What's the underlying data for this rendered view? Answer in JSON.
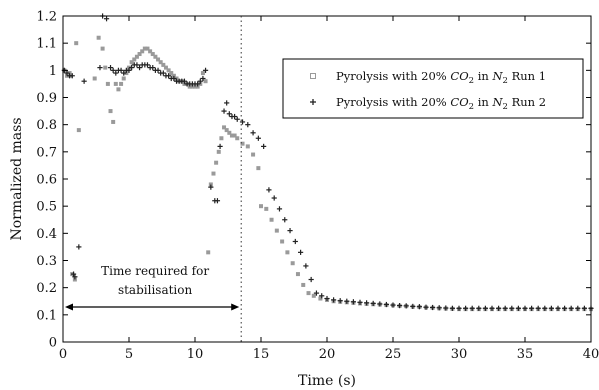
{
  "chart_data": {
    "type": "scatter",
    "xlabel": "Time (s)",
    "ylabel": "Normalized mass",
    "xlim": [
      0,
      40
    ],
    "ylim": [
      0,
      1.2
    ],
    "xticks": [
      "0",
      "5",
      "10",
      "15",
      "20",
      "25",
      "30",
      "35",
      "40"
    ],
    "yticks": [
      "0",
      "0.1",
      "0.2",
      "0.3",
      "0.4",
      "0.5",
      "0.6",
      "0.7",
      "0.8",
      "0.9",
      "1",
      "1.1",
      "1.2"
    ],
    "grid": false,
    "legend_position": "top-right",
    "stabilisation_time": 13.5,
    "annotation": [
      "Time required for",
      "stabilisation"
    ],
    "series": [
      {
        "name": "Pyrolysis with 20% CO2 in N2 Run 1",
        "legend_parts": [
          "Pyrolysis with 20% ",
          "CO",
          "2",
          " in ",
          "N",
          "2",
          " Run 1"
        ],
        "marker": "square",
        "color": "#9a9a9a",
        "points": [
          [
            0.1,
            1.0
          ],
          [
            0.3,
            0.98
          ],
          [
            0.5,
            0.99
          ],
          [
            0.6,
            0.98
          ],
          [
            0.7,
            0.25
          ],
          [
            0.9,
            0.23
          ],
          [
            1.0,
            1.1
          ],
          [
            1.2,
            0.78
          ],
          [
            2.4,
            0.97
          ],
          [
            2.7,
            1.12
          ],
          [
            3.0,
            1.08
          ],
          [
            3.2,
            1.01
          ],
          [
            3.4,
            0.95
          ],
          [
            3.6,
            0.85
          ],
          [
            3.8,
            0.81
          ],
          [
            4.0,
            0.95
          ],
          [
            4.2,
            0.93
          ],
          [
            4.4,
            0.95
          ],
          [
            4.6,
            0.97
          ],
          [
            4.8,
            0.99
          ],
          [
            5.0,
            1.01
          ],
          [
            5.2,
            1.03
          ],
          [
            5.4,
            1.04
          ],
          [
            5.6,
            1.05
          ],
          [
            5.8,
            1.06
          ],
          [
            6.0,
            1.07
          ],
          [
            6.2,
            1.08
          ],
          [
            6.4,
            1.08
          ],
          [
            6.6,
            1.07
          ],
          [
            6.8,
            1.06
          ],
          [
            7.0,
            1.05
          ],
          [
            7.2,
            1.04
          ],
          [
            7.4,
            1.03
          ],
          [
            7.6,
            1.02
          ],
          [
            7.8,
            1.01
          ],
          [
            8.0,
            1.0
          ],
          [
            8.2,
            0.99
          ],
          [
            8.4,
            0.98
          ],
          [
            8.6,
            0.97
          ],
          [
            8.8,
            0.96
          ],
          [
            9.0,
            0.96
          ],
          [
            9.2,
            0.95
          ],
          [
            9.4,
            0.95
          ],
          [
            9.6,
            0.94
          ],
          [
            9.8,
            0.94
          ],
          [
            10.0,
            0.94
          ],
          [
            10.2,
            0.94
          ],
          [
            10.4,
            0.95
          ],
          [
            10.6,
            0.99
          ],
          [
            10.8,
            0.96
          ],
          [
            11.0,
            0.33
          ],
          [
            11.2,
            0.58
          ],
          [
            11.4,
            0.62
          ],
          [
            11.6,
            0.66
          ],
          [
            11.8,
            0.7
          ],
          [
            12.0,
            0.75
          ],
          [
            12.2,
            0.79
          ],
          [
            12.4,
            0.78
          ],
          [
            12.6,
            0.77
          ],
          [
            12.8,
            0.76
          ],
          [
            13.0,
            0.76
          ],
          [
            13.2,
            0.75
          ],
          [
            13.6,
            0.73
          ],
          [
            14.0,
            0.72
          ],
          [
            14.4,
            0.69
          ],
          [
            14.8,
            0.64
          ],
          [
            15.0,
            0.5
          ],
          [
            15.4,
            0.49
          ],
          [
            15.8,
            0.45
          ],
          [
            16.2,
            0.41
          ],
          [
            16.6,
            0.37
          ],
          [
            17.0,
            0.33
          ],
          [
            17.4,
            0.29
          ],
          [
            17.8,
            0.25
          ],
          [
            18.2,
            0.21
          ],
          [
            18.6,
            0.18
          ],
          [
            19.0,
            0.17
          ],
          [
            19.5,
            0.16
          ],
          [
            20.0,
            0.155
          ],
          [
            20.5,
            0.15
          ],
          [
            21.0,
            0.148
          ],
          [
            21.5,
            0.146
          ],
          [
            22.0,
            0.144
          ],
          [
            22.5,
            0.142
          ],
          [
            23.0,
            0.14
          ],
          [
            23.5,
            0.139
          ],
          [
            24.0,
            0.138
          ],
          [
            24.5,
            0.136
          ],
          [
            25.0,
            0.135
          ],
          [
            25.5,
            0.133
          ],
          [
            26.0,
            0.132
          ],
          [
            26.5,
            0.13
          ],
          [
            27.0,
            0.129
          ],
          [
            27.5,
            0.127
          ],
          [
            28.0,
            0.126
          ],
          [
            28.5,
            0.124
          ],
          [
            29.0,
            0.123
          ],
          [
            29.5,
            0.122
          ],
          [
            30.0,
            0.121
          ],
          [
            30.5,
            0.121
          ],
          [
            31.0,
            0.121
          ],
          [
            31.5,
            0.121
          ],
          [
            32.0,
            0.121
          ],
          [
            32.5,
            0.121
          ],
          [
            33.0,
            0.121
          ],
          [
            33.5,
            0.121
          ],
          [
            34.0,
            0.121
          ],
          [
            34.5,
            0.121
          ],
          [
            35.0,
            0.121
          ],
          [
            35.5,
            0.121
          ],
          [
            36.0,
            0.121
          ],
          [
            36.5,
            0.121
          ],
          [
            37.0,
            0.121
          ],
          [
            37.5,
            0.121
          ],
          [
            38.0,
            0.121
          ],
          [
            38.5,
            0.121
          ],
          [
            39.0,
            0.121
          ],
          [
            39.5,
            0.121
          ],
          [
            40.0,
            0.121
          ]
        ]
      },
      {
        "name": "Pyrolysis with 20% CO2 in N2 Run 2",
        "legend_parts": [
          "Pyrolysis with 20% ",
          "CO",
          "2",
          " in ",
          "N",
          "2",
          " Run 2"
        ],
        "marker": "plus",
        "color": "#222222",
        "points": [
          [
            0.1,
            1.0
          ],
          [
            0.3,
            0.99
          ],
          [
            0.5,
            0.98
          ],
          [
            0.7,
            0.98
          ],
          [
            0.8,
            0.25
          ],
          [
            0.9,
            0.24
          ],
          [
            1.2,
            0.35
          ],
          [
            1.6,
            0.96
          ],
          [
            2.8,
            1.01
          ],
          [
            3.0,
            1.2
          ],
          [
            3.3,
            1.19
          ],
          [
            3.6,
            1.01
          ],
          [
            3.8,
            1.0
          ],
          [
            4.0,
            0.99
          ],
          [
            4.2,
            1.0
          ],
          [
            4.4,
            1.0
          ],
          [
            4.6,
            0.99
          ],
          [
            4.8,
            1.0
          ],
          [
            5.0,
            1.0
          ],
          [
            5.2,
            1.01
          ],
          [
            5.4,
            1.02
          ],
          [
            5.6,
            1.02
          ],
          [
            5.8,
            1.01
          ],
          [
            6.0,
            1.02
          ],
          [
            6.2,
            1.02
          ],
          [
            6.4,
            1.02
          ],
          [
            6.6,
            1.01
          ],
          [
            6.8,
            1.01
          ],
          [
            7.0,
            1.0
          ],
          [
            7.2,
            1.0
          ],
          [
            7.4,
            0.99
          ],
          [
            7.6,
            0.99
          ],
          [
            7.8,
            0.98
          ],
          [
            8.0,
            0.98
          ],
          [
            8.2,
            0.97
          ],
          [
            8.4,
            0.97
          ],
          [
            8.6,
            0.96
          ],
          [
            8.8,
            0.96
          ],
          [
            9.0,
            0.96
          ],
          [
            9.2,
            0.96
          ],
          [
            9.4,
            0.95
          ],
          [
            9.6,
            0.95
          ],
          [
            9.8,
            0.95
          ],
          [
            10.0,
            0.95
          ],
          [
            10.2,
            0.95
          ],
          [
            10.4,
            0.96
          ],
          [
            10.6,
            0.97
          ],
          [
            10.8,
            1.0
          ],
          [
            11.2,
            0.57
          ],
          [
            11.5,
            0.52
          ],
          [
            11.7,
            0.52
          ],
          [
            11.9,
            0.72
          ],
          [
            12.2,
            0.85
          ],
          [
            12.4,
            0.88
          ],
          [
            12.6,
            0.84
          ],
          [
            12.8,
            0.83
          ],
          [
            13.0,
            0.83
          ],
          [
            13.2,
            0.82
          ],
          [
            13.6,
            0.81
          ],
          [
            14.0,
            0.8
          ],
          [
            14.4,
            0.77
          ],
          [
            14.8,
            0.75
          ],
          [
            15.2,
            0.72
          ],
          [
            15.6,
            0.56
          ],
          [
            16.0,
            0.53
          ],
          [
            16.4,
            0.49
          ],
          [
            16.8,
            0.45
          ],
          [
            17.2,
            0.41
          ],
          [
            17.6,
            0.37
          ],
          [
            18.0,
            0.33
          ],
          [
            18.4,
            0.28
          ],
          [
            18.8,
            0.23
          ],
          [
            19.2,
            0.18
          ],
          [
            19.6,
            0.17
          ],
          [
            20.0,
            0.16
          ],
          [
            20.5,
            0.155
          ],
          [
            21.0,
            0.152
          ],
          [
            21.5,
            0.15
          ],
          [
            22.0,
            0.148
          ],
          [
            22.5,
            0.146
          ],
          [
            23.0,
            0.144
          ],
          [
            23.5,
            0.142
          ],
          [
            24.0,
            0.14
          ],
          [
            24.5,
            0.138
          ],
          [
            25.0,
            0.136
          ],
          [
            25.5,
            0.134
          ],
          [
            26.0,
            0.133
          ],
          [
            26.5,
            0.131
          ],
          [
            27.0,
            0.13
          ],
          [
            27.5,
            0.128
          ],
          [
            28.0,
            0.127
          ],
          [
            28.5,
            0.126
          ],
          [
            29.0,
            0.125
          ],
          [
            29.5,
            0.124
          ],
          [
            30.0,
            0.124
          ],
          [
            30.5,
            0.124
          ],
          [
            31.0,
            0.124
          ],
          [
            31.5,
            0.124
          ],
          [
            32.0,
            0.124
          ],
          [
            32.5,
            0.124
          ],
          [
            33.0,
            0.124
          ],
          [
            33.5,
            0.124
          ],
          [
            34.0,
            0.124
          ],
          [
            34.5,
            0.124
          ],
          [
            35.0,
            0.124
          ],
          [
            35.5,
            0.124
          ],
          [
            36.0,
            0.124
          ],
          [
            36.5,
            0.124
          ],
          [
            37.0,
            0.124
          ],
          [
            37.5,
            0.124
          ],
          [
            38.0,
            0.124
          ],
          [
            38.5,
            0.124
          ],
          [
            39.0,
            0.124
          ],
          [
            39.5,
            0.124
          ],
          [
            40.0,
            0.124
          ]
        ]
      }
    ]
  }
}
